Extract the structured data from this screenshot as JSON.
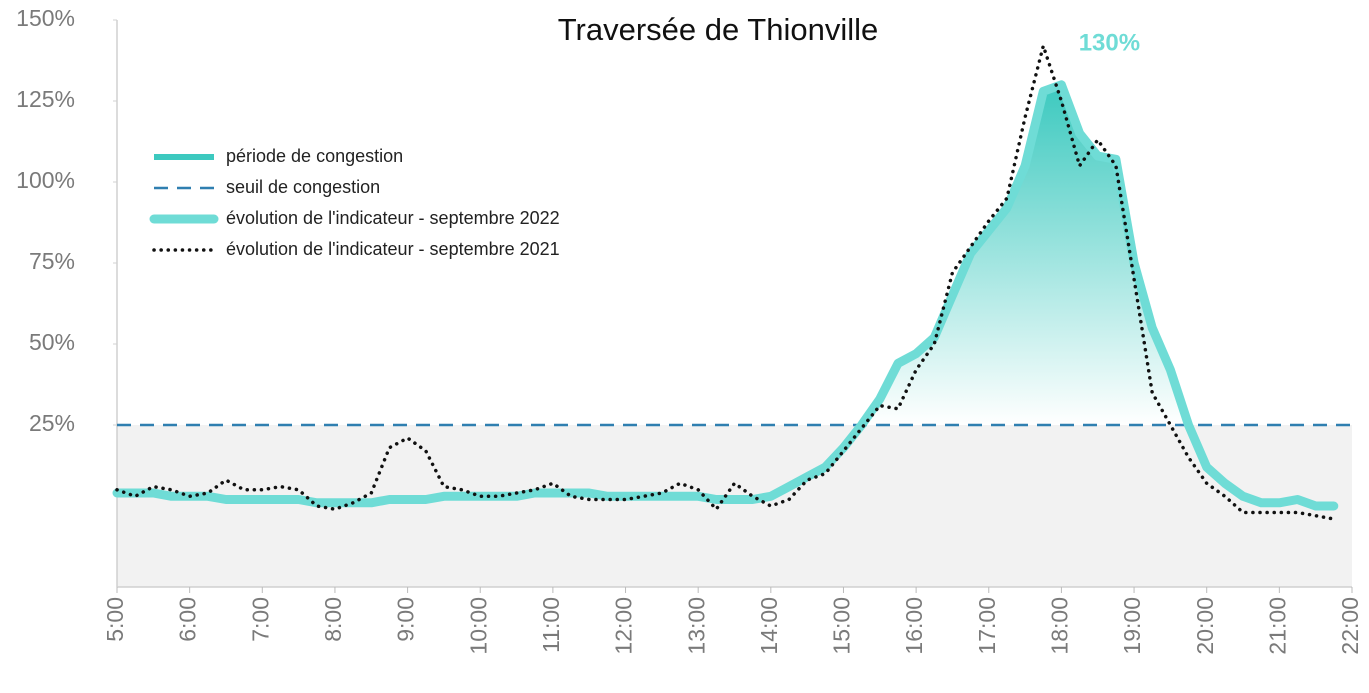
{
  "chart_data": {
    "type": "line",
    "title": "Traversée de Thionville",
    "x": [
      5,
      5.25,
      5.5,
      5.75,
      6,
      6.25,
      6.5,
      6.75,
      7,
      7.25,
      7.5,
      7.75,
      8,
      8.25,
      8.5,
      8.75,
      9,
      9.25,
      9.5,
      9.75,
      10,
      10.25,
      10.5,
      10.75,
      11,
      11.25,
      11.5,
      11.75,
      12,
      12.25,
      12.5,
      12.75,
      13,
      13.25,
      13.5,
      13.75,
      14,
      14.25,
      14.5,
      14.75,
      15,
      15.25,
      15.5,
      15.75,
      16,
      16.25,
      16.5,
      16.75,
      17,
      17.25,
      17.5,
      17.75,
      18,
      18.25,
      18.5,
      18.75,
      19,
      19.25,
      19.5,
      19.75,
      20,
      20.25,
      20.5,
      20.75,
      21,
      21.25,
      21.5,
      21.75
    ],
    "series": [
      {
        "name": "évolution de l'indicateur - septembre 2022",
        "color": "#6fdcd6",
        "style": "thick",
        "values": [
          4,
          4,
          4,
          3,
          3,
          3,
          2,
          2,
          2,
          2,
          2,
          1,
          1,
          1,
          1,
          2,
          2,
          2,
          3,
          3,
          3,
          3,
          3,
          4,
          4,
          4,
          4,
          3,
          3,
          3,
          3,
          3,
          3,
          2,
          2,
          2,
          3,
          6,
          9,
          12,
          18,
          25,
          33,
          44,
          47,
          52,
          65,
          78,
          85,
          92,
          105,
          128,
          130,
          115,
          108,
          107,
          75,
          55,
          42,
          25,
          12,
          7,
          3,
          1,
          1,
          2,
          0,
          0
        ]
      },
      {
        "name": "évolution de l'indicateur - septembre 2021",
        "color": "#111111",
        "style": "dotted",
        "values": [
          5,
          3,
          6,
          5,
          3,
          4,
          8,
          5,
          5,
          6,
          5,
          0,
          -1,
          1,
          4,
          18,
          21,
          17,
          6,
          5,
          3,
          3,
          4,
          5,
          7,
          3,
          2,
          2,
          2,
          3,
          4,
          7,
          5,
          -1,
          7,
          3,
          0,
          2,
          8,
          10,
          17,
          24,
          31,
          30,
          42,
          50,
          72,
          80,
          88,
          95,
          120,
          142,
          125,
          105,
          113,
          105,
          70,
          35,
          25,
          15,
          7,
          3,
          -2,
          -2,
          -2,
          -2,
          -3,
          -4
        ]
      }
    ],
    "threshold": {
      "name": "seuil de congestion",
      "value": 25,
      "color": "#2f7fb0"
    },
    "congestion": {
      "name": "période de congestion",
      "color": "#3cc9bf"
    },
    "annotation": {
      "text": "130%",
      "x": 18.0,
      "y": 130,
      "color": "#6fdcd6"
    },
    "xlim": [
      5,
      22
    ],
    "xticks": [
      {
        "value": 5,
        "label": "5:00"
      },
      {
        "value": 6,
        "label": "6:00"
      },
      {
        "value": 7,
        "label": "7:00"
      },
      {
        "value": 8,
        "label": "8:00"
      },
      {
        "value": 9,
        "label": "9:00"
      },
      {
        "value": 10,
        "label": "10:00"
      },
      {
        "value": 11,
        "label": "11:00"
      },
      {
        "value": 12,
        "label": "12:00"
      },
      {
        "value": 13,
        "label": "13:00"
      },
      {
        "value": 14,
        "label": "14:00"
      },
      {
        "value": 15,
        "label": "15:00"
      },
      {
        "value": 16,
        "label": "16:00"
      },
      {
        "value": 17,
        "label": "17:00"
      },
      {
        "value": 18,
        "label": "18:00"
      },
      {
        "value": 19,
        "label": "19:00"
      },
      {
        "value": 20,
        "label": "20:00"
      },
      {
        "value": 21,
        "label": "21:00"
      },
      {
        "value": 22,
        "label": "22:00"
      }
    ],
    "ylim": [
      -25,
      150
    ],
    "yticks": [
      {
        "value": 25,
        "label": "25%"
      },
      {
        "value": 50,
        "label": "50%"
      },
      {
        "value": 75,
        "label": "75%"
      },
      {
        "value": 100,
        "label": "100%"
      },
      {
        "value": 125,
        "label": "125%"
      },
      {
        "value": 150,
        "label": "150%"
      }
    ]
  }
}
